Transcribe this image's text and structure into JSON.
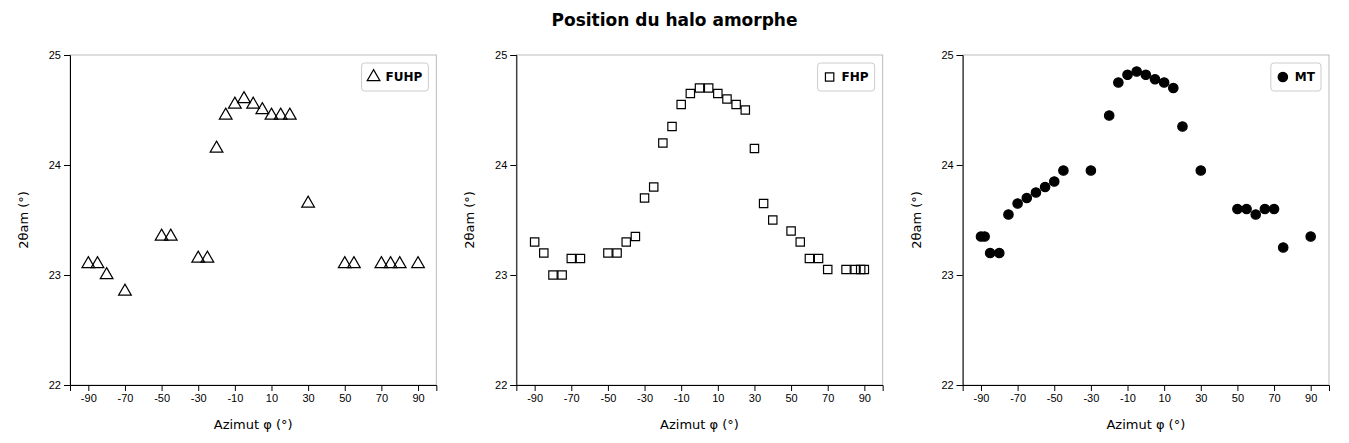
{
  "chart_data": [
    {
      "type": "scatter",
      "x_label": "Azimut φ (°)",
      "y_label": "2θam (°)",
      "xlim": [
        -100,
        100
      ],
      "xticks": [
        -90,
        -70,
        -50,
        -30,
        -10,
        10,
        30,
        50,
        70,
        90
      ],
      "ylim": [
        22,
        25
      ],
      "yticks": [
        22,
        23,
        24,
        25
      ],
      "grid": false,
      "legend": "upper right",
      "x": [
        -90,
        -85,
        -80,
        -70,
        -50,
        -45,
        -30,
        -25,
        -20,
        -15,
        -10,
        -5,
        0,
        5,
        10,
        15,
        20,
        30,
        50,
        55,
        70,
        75,
        80,
        90
      ],
      "series": [
        {
          "name": "FUHP",
          "color": "#000000",
          "marker": "open-triangle",
          "values": [
            23.1,
            23.1,
            23.0,
            22.85,
            23.35,
            23.35,
            23.15,
            23.15,
            24.15,
            24.45,
            24.55,
            24.6,
            24.55,
            24.5,
            24.45,
            24.45,
            24.45,
            23.65,
            23.1,
            23.1,
            23.1,
            23.1,
            23.1,
            23.1
          ]
        }
      ]
    },
    {
      "type": "scatter",
      "title": "Position du halo amorphe",
      "x_label": "Azimut φ (°)",
      "y_label": "2θam (°)",
      "xlim": [
        -100,
        100
      ],
      "xticks": [
        -90,
        -70,
        -50,
        -30,
        -10,
        10,
        30,
        50,
        70,
        90
      ],
      "ylim": [
        22,
        25
      ],
      "yticks": [
        22,
        23,
        24,
        25
      ],
      "grid": false,
      "legend": "upper right",
      "x": [
        -90,
        -85,
        -80,
        -75,
        -70,
        -65,
        -50,
        -45,
        -40,
        -35,
        -30,
        -25,
        -20,
        -15,
        -10,
        -5,
        0,
        5,
        10,
        15,
        20,
        25,
        30,
        35,
        40,
        50,
        55,
        60,
        65,
        70,
        80,
        85,
        88,
        90
      ],
      "series": [
        {
          "name": "FHP",
          "color": "#000000",
          "marker": "open-square",
          "values": [
            23.3,
            23.2,
            23.0,
            23.0,
            23.15,
            23.15,
            23.2,
            23.2,
            23.3,
            23.35,
            23.7,
            23.8,
            24.2,
            24.35,
            24.55,
            24.65,
            24.7,
            24.7,
            24.65,
            24.6,
            24.55,
            24.5,
            24.15,
            23.65,
            23.5,
            23.4,
            23.3,
            23.15,
            23.15,
            23.05,
            23.05,
            23.05,
            23.05,
            23.05
          ]
        }
      ]
    },
    {
      "type": "scatter",
      "x_label": "Azimut φ (°)",
      "y_label": "2θam (°)",
      "xlim": [
        -100,
        100
      ],
      "xticks": [
        -90,
        -70,
        -50,
        -30,
        -10,
        10,
        30,
        50,
        70,
        90
      ],
      "ylim": [
        22,
        25
      ],
      "yticks": [
        22,
        23,
        24,
        25
      ],
      "grid": false,
      "legend": "upper right",
      "x": [
        -90,
        -88,
        -85,
        -80,
        -75,
        -70,
        -65,
        -60,
        -55,
        -50,
        -45,
        -30,
        -20,
        -15,
        -10,
        -5,
        0,
        5,
        10,
        15,
        20,
        30,
        50,
        55,
        60,
        65,
        70,
        75,
        90
      ],
      "series": [
        {
          "name": "MT",
          "color": "#000000",
          "marker": "circle",
          "values": [
            23.35,
            23.35,
            23.2,
            23.2,
            23.55,
            23.65,
            23.7,
            23.75,
            23.8,
            23.85,
            23.95,
            23.95,
            24.45,
            24.75,
            24.82,
            24.85,
            24.82,
            24.78,
            24.75,
            24.7,
            24.35,
            23.95,
            23.6,
            23.6,
            23.55,
            23.6,
            23.6,
            23.25,
            23.35
          ]
        }
      ]
    }
  ]
}
